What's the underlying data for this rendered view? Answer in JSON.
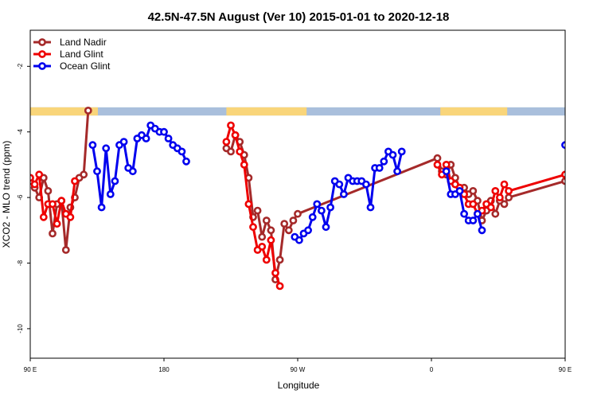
{
  "chart_data": {
    "type": "line",
    "title": "42.5N-47.5N August (Ver 10)   2015-01-01 to 2020-12-18",
    "xlabel": "Longitude",
    "ylabel": "XCO2 - MLO trend (ppm)",
    "xlim": [
      90,
      450
    ],
    "ylim": [
      -10.9,
      -0.9
    ],
    "x_ticks": [
      {
        "value": 90,
        "label": "90 E"
      },
      {
        "value": 180,
        "label": "180"
      },
      {
        "value": 270,
        "label": "90 W"
      },
      {
        "value": 360,
        "label": "0"
      },
      {
        "value": 450,
        "label": "90 E"
      },
      {
        "value": 540,
        "label": "180"
      }
    ],
    "y_ticks": [
      {
        "value": -2,
        "label": "-2"
      },
      {
        "value": -4,
        "label": "-4"
      },
      {
        "value": -6,
        "label": "-6"
      },
      {
        "value": -8,
        "label": "-8"
      },
      {
        "value": -10,
        "label": "-10"
      }
    ],
    "grid": false,
    "legend_position": "top-left",
    "land_ocean_mask": {
      "y_top": -3.25,
      "y_bottom": -3.5,
      "land_color": "#f9d57a",
      "ocean_color": "#a9bfdc",
      "land_ranges": [
        [
          90,
          135.5
        ],
        [
          222,
          276
        ],
        [
          366,
          411
        ],
        [
          451,
          496
        ]
      ]
    },
    "series": [
      {
        "name": "Land Nadir",
        "color": "#a52a2a",
        "x": [
          90,
          93,
          96,
          99,
          102,
          105,
          108,
          111,
          114,
          117,
          120,
          123,
          126,
          129,
          132,
          135,
          222,
          225,
          228,
          231,
          234,
          237,
          240,
          243,
          246,
          249,
          252,
          255,
          258,
          261,
          264,
          267,
          270,
          364,
          367,
          370,
          373,
          376,
          379,
          382,
          385,
          388,
          391,
          394,
          397,
          400,
          403,
          406,
          409,
          412,
          450,
          453,
          456,
          459,
          462,
          465,
          468,
          471,
          474,
          477,
          480,
          483,
          486,
          489,
          492,
          495
        ],
        "y": [
          -5.5,
          -5.7,
          -6.0,
          -5.4,
          -5.8,
          -7.1,
          -6.2,
          -6.1,
          -7.6,
          -6.3,
          -6.0,
          -5.4,
          -5.3,
          -3.35,
          null,
          null,
          -4.5,
          -4.6,
          -4.1,
          -4.3,
          -4.7,
          -5.4,
          -6.6,
          -6.4,
          -7.2,
          -6.7,
          -7.0,
          -8.5,
          -7.9,
          -6.8,
          -7.0,
          -6.7,
          -6.5,
          -4.8,
          -5.2,
          -5.3,
          -5.0,
          -5.4,
          -5.7,
          -5.7,
          -5.9,
          -5.8,
          -6.1,
          -6.7,
          -6.4,
          -6.1,
          -6.5,
          -6.1,
          -6.2,
          -6.0,
          -5.5,
          -5.7,
          -6.0,
          -5.4,
          -5.8,
          -7.1,
          -6.2,
          -6.1,
          -7.6,
          -6.3,
          -6.0,
          -5.4,
          -5.3,
          -3.35,
          null,
          null
        ]
      },
      {
        "name": "Land Glint",
        "color": "#ee0000",
        "x": [
          90,
          93,
          96,
          99,
          102,
          105,
          108,
          111,
          114,
          117,
          120,
          123,
          222,
          225,
          228,
          231,
          234,
          237,
          240,
          243,
          246,
          249,
          252,
          255,
          258,
          261,
          264,
          364,
          367,
          370,
          373,
          376,
          379,
          382,
          385,
          388,
          391,
          394,
          397,
          400,
          403,
          406,
          409,
          412,
          450,
          453,
          456,
          459,
          462,
          465,
          468,
          471,
          474,
          477,
          480
        ],
        "y": [
          -5.4,
          -5.6,
          -5.3,
          -6.6,
          -6.2,
          -6.2,
          -6.8,
          -6.1,
          -6.5,
          -6.6,
          -5.5,
          null,
          -4.3,
          -3.8,
          -4.1,
          -4.6,
          -5.0,
          -6.2,
          -6.9,
          -7.6,
          -7.5,
          -7.9,
          -7.3,
          -8.3,
          -8.7,
          null,
          null,
          -5.0,
          -5.3,
          -5.0,
          -5.5,
          -5.6,
          -5.7,
          -5.9,
          -6.2,
          -6.2,
          -6.5,
          -6.4,
          -6.2,
          -6.3,
          -5.8,
          -6.0,
          -5.6,
          -5.8,
          -5.3,
          -6.6,
          -6.2,
          -6.2,
          -6.8,
          -6.1,
          -6.5,
          -6.6,
          -5.5,
          null,
          null
        ]
      },
      {
        "name": "Ocean Glint",
        "color": "#0000ee",
        "x": [
          132,
          135,
          138,
          141,
          144,
          147,
          150,
          153,
          156,
          159,
          162,
          165,
          168,
          171,
          174,
          177,
          180,
          183,
          186,
          189,
          192,
          195,
          198,
          201,
          204,
          207,
          210,
          213,
          216,
          219,
          268,
          271,
          274,
          277,
          280,
          283,
          286,
          289,
          292,
          295,
          298,
          301,
          304,
          307,
          310,
          313,
          316,
          319,
          322,
          325,
          328,
          331,
          334,
          337,
          340,
          343,
          346,
          349,
          352,
          355,
          358,
          370,
          373,
          376,
          379,
          382,
          385,
          388,
          391,
          394,
          397,
          400,
          403,
          406,
          409,
          412
        ],
        "y": [
          -4.4,
          -5.2,
          -6.3,
          -4.5,
          -5.9,
          -5.5,
          -4.4,
          -4.3,
          -5.1,
          -5.2,
          -4.2,
          -4.1,
          -4.2,
          -3.8,
          -3.9,
          -4.0,
          -4.0,
          -4.2,
          -4.4,
          -4.5,
          -4.6,
          -4.9,
          null,
          null,
          null,
          null,
          null,
          null,
          null,
          null,
          -7.2,
          -7.3,
          -7.1,
          -7.0,
          -6.6,
          -6.2,
          -6.4,
          -6.9,
          -6.3,
          -5.5,
          -5.6,
          -5.9,
          -5.4,
          -5.5,
          -5.5,
          -5.5,
          -5.6,
          -6.3,
          -5.1,
          -5.1,
          -4.9,
          -4.6,
          -4.7,
          -5.2,
          -4.6,
          null,
          null,
          null,
          null,
          null,
          null,
          -5.2,
          -5.9,
          -5.9,
          -5.8,
          -6.5,
          -6.7,
          -6.7,
          -6.5,
          -7.0,
          null,
          null,
          null,
          null,
          null,
          null
        ],
        "x2": [
          450,
          453,
          456,
          459,
          462,
          465,
          468,
          471,
          474,
          477,
          480,
          483,
          486,
          489,
          492,
          495
        ],
        "y2": [
          -4.4,
          -5.2,
          -6.3,
          -4.5,
          -5.9,
          -5.5,
          -4.4,
          -4.3,
          -5.1,
          -5.2,
          null,
          null,
          null,
          null,
          null,
          null
        ]
      }
    ]
  }
}
